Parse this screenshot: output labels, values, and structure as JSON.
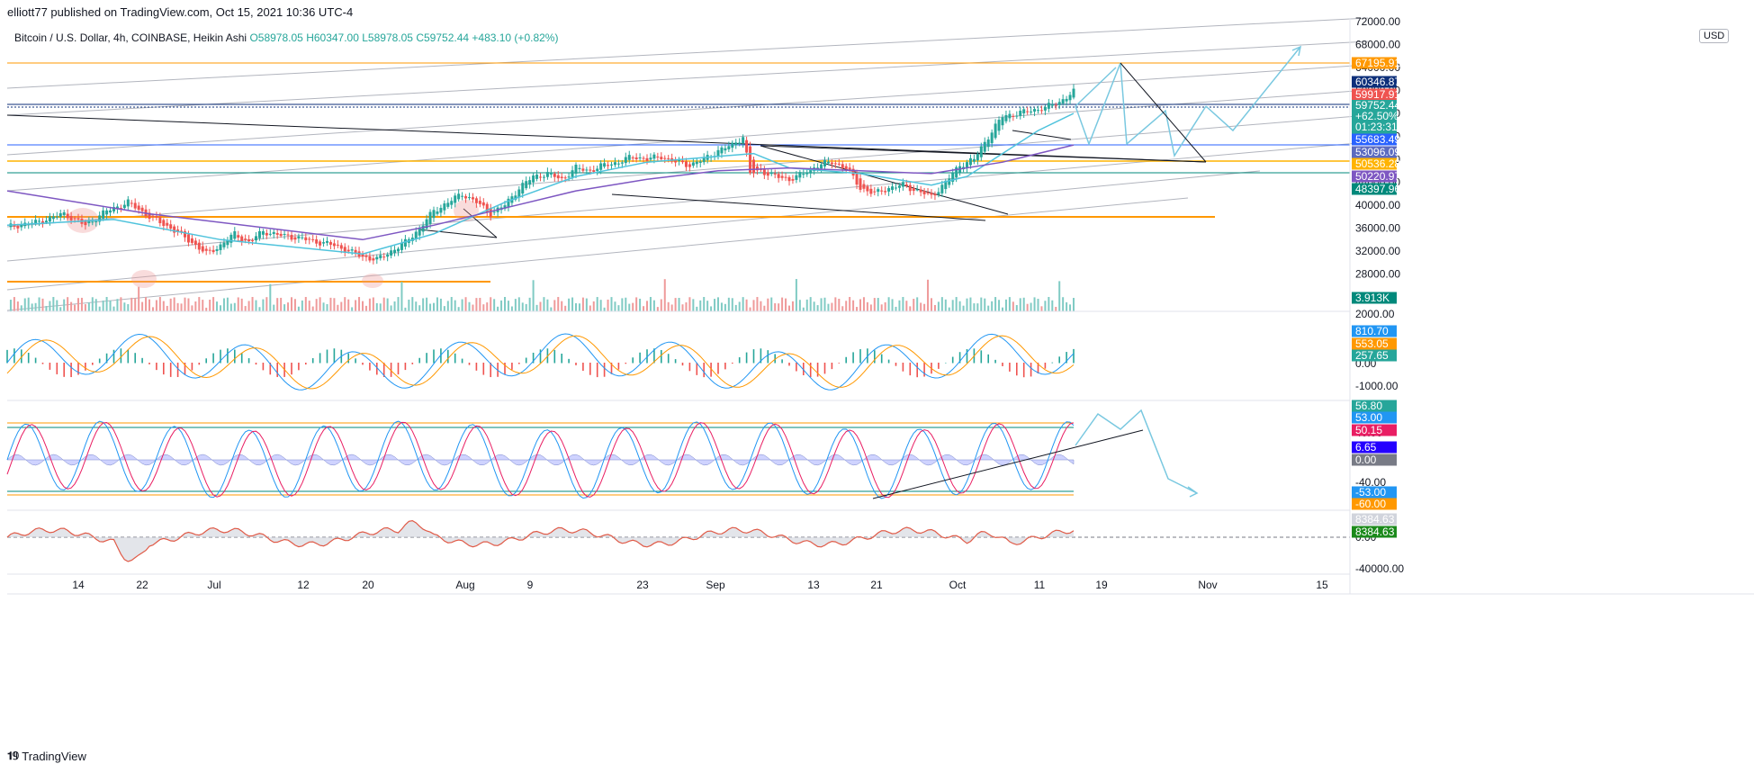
{
  "header": {
    "published": "elliott77 published on TradingView.com, Oct 15, 2021 10:36 UTC-4"
  },
  "legend": {
    "symbol": "Bitcoin / U.S. Dollar, 4h, COINBASE, Heikin Ashi",
    "o": "O58978.05",
    "h": "H60347.00",
    "l": "L58978.05",
    "c": "C59752.44",
    "change": "+483.10 (+0.82%)"
  },
  "currency": "USD",
  "footer": {
    "brand": "TradingView",
    "logo": "tradingview-logo-icon"
  },
  "colors": {
    "up": "#26a69a",
    "down": "#ef5350",
    "orange": "#ff9800",
    "navy": "#0d2f7a",
    "purple": "#7e57c2",
    "ma": "#4fc3dc",
    "teal": "#00897b",
    "forecast": "#79c8e0"
  },
  "chart_data": [
    {
      "type": "candlestick",
      "name": "main",
      "title": "Bitcoin / U.S. Dollar, 4h, COINBASE, Heikin Ashi",
      "x_ticks": [
        "14",
        "22",
        "Jul",
        "12",
        "20",
        "Aug",
        "9",
        "23",
        "Sep",
        "13",
        "21",
        "Oct",
        "11",
        "19",
        "Nov",
        "15"
      ],
      "y_ticks": [
        "72000.00",
        "68000.00",
        "64000.00",
        "60000.00",
        "56000.00",
        "52000.00",
        "48000.00",
        "44000.00",
        "40000.00",
        "36000.00",
        "32000.00",
        "28000.00"
      ],
      "ylim": [
        27000,
        74000
      ],
      "price_path": [
        [
          0,
          36200
        ],
        [
          8,
          37000
        ],
        [
          16,
          38500
        ],
        [
          22,
          36500
        ],
        [
          28,
          39000
        ],
        [
          34,
          40500
        ],
        [
          40,
          38000
        ],
        [
          46,
          36000
        ],
        [
          52,
          33500
        ],
        [
          56,
          31500
        ],
        [
          60,
          33000
        ],
        [
          64,
          35000
        ],
        [
          68,
          33500
        ],
        [
          72,
          35500
        ],
        [
          76,
          34800
        ],
        [
          80,
          34500
        ],
        [
          84,
          34000
        ],
        [
          88,
          33500
        ],
        [
          92,
          33000
        ],
        [
          96,
          32000
        ],
        [
          100,
          31000
        ],
        [
          104,
          30500
        ],
        [
          108,
          32000
        ],
        [
          112,
          33500
        ],
        [
          116,
          36000
        ],
        [
          120,
          39000
        ],
        [
          124,
          40500
        ],
        [
          128,
          42000
        ],
        [
          132,
          40500
        ],
        [
          136,
          38500
        ],
        [
          140,
          40000
        ],
        [
          144,
          43000
        ],
        [
          148,
          45000
        ],
        [
          152,
          45500
        ],
        [
          156,
          44500
        ],
        [
          160,
          46500
        ],
        [
          164,
          46000
        ],
        [
          168,
          47000
        ],
        [
          172,
          47500
        ],
        [
          176,
          48500
        ],
        [
          180,
          48000
        ],
        [
          184,
          48500
        ],
        [
          188,
          47500
        ],
        [
          192,
          47000
        ],
        [
          196,
          48000
        ],
        [
          200,
          49500
        ],
        [
          204,
          50500
        ],
        [
          207,
          52000
        ],
        [
          209,
          45500
        ],
        [
          212,
          46000
        ],
        [
          216,
          45000
        ],
        [
          220,
          44500
        ],
        [
          224,
          45500
        ],
        [
          228,
          47000
        ],
        [
          232,
          47500
        ],
        [
          236,
          46500
        ],
        [
          240,
          43000
        ],
        [
          244,
          42000
        ],
        [
          248,
          43000
        ],
        [
          252,
          43500
        ],
        [
          256,
          42500
        ],
        [
          260,
          41500
        ],
        [
          264,
          44000
        ],
        [
          268,
          47000
        ],
        [
          272,
          48000
        ],
        [
          276,
          52000
        ],
        [
          280,
          55500
        ],
        [
          284,
          56000
        ],
        [
          288,
          56500
        ],
        [
          292,
          57000
        ],
        [
          296,
          58000
        ],
        [
          300,
          59750
        ]
      ],
      "lines": {
        "ma_cyan": [
          [
            0,
            36500
          ],
          [
            30,
            37500
          ],
          [
            60,
            34000
          ],
          [
            100,
            31500
          ],
          [
            120,
            35000
          ],
          [
            140,
            40500
          ],
          [
            160,
            45000
          ],
          [
            180,
            47500
          ],
          [
            200,
            48500
          ],
          [
            210,
            49000
          ],
          [
            220,
            46500
          ],
          [
            240,
            45500
          ],
          [
            260,
            43500
          ],
          [
            270,
            45000
          ],
          [
            280,
            49000
          ],
          [
            290,
            53000
          ],
          [
            300,
            56000
          ]
        ],
        "ma_purple": [
          [
            0,
            42500
          ],
          [
            40,
            38500
          ],
          [
            80,
            35500
          ],
          [
            100,
            34000
          ],
          [
            120,
            36500
          ],
          [
            140,
            39500
          ],
          [
            160,
            42500
          ],
          [
            180,
            44500
          ],
          [
            200,
            46000
          ],
          [
            220,
            46500
          ],
          [
            240,
            46000
          ],
          [
            260,
            45500
          ],
          [
            280,
            47500
          ],
          [
            300,
            50500
          ]
        ]
      },
      "price_labels": [
        {
          "label": "67195.91",
          "color": "#ff9800"
        },
        {
          "label": "60346.87",
          "color": "#0d2f7a"
        },
        {
          "label": "59917.91",
          "color": "#ef5350"
        },
        {
          "label": "59752.44",
          "sub": [
            "+62.50%",
            "01:23:31"
          ],
          "color": "#26a69a"
        },
        {
          "label": "55683.49",
          "color": "#2962ff"
        },
        {
          "label": "53096.09",
          "color": "#5c6bc0"
        },
        {
          "label": "50536.28",
          "color": "#ffb300",
          "text_color": "#131722"
        },
        {
          "label": "50220.97",
          "color": "#7e57c2"
        },
        {
          "label": "48397.96",
          "color": "#00897b"
        }
      ],
      "volume_label": "3.913K"
    },
    {
      "type": "line",
      "name": "oscillator-1",
      "y_ticks": [
        "2000.00",
        "0.00",
        "-1000.00"
      ],
      "ylim": [
        -1400,
        2000
      ],
      "series": [
        {
          "values_label": "810.70",
          "color": "#2196f3"
        },
        {
          "values_label": "553.05",
          "color": "#ff9800"
        },
        {
          "values_label": "257.65",
          "color": "#26a69a"
        }
      ]
    },
    {
      "type": "line",
      "name": "oscillator-2",
      "y_ticks": [
        "40.00",
        "-40.00"
      ],
      "ylim": [
        -70,
        70
      ],
      "levels": [
        {
          "label": "56.80",
          "color": "#26a69a"
        },
        {
          "label": "53.00",
          "color": "#2196f3"
        },
        {
          "label": "50.15",
          "color": "#e91e63"
        },
        {
          "label": "6.65",
          "color": "#2400ff"
        },
        {
          "label": "0.00",
          "color": "#787b86"
        },
        {
          "label": "-53.00",
          "color": "#2196f3"
        },
        {
          "label": "-60.00",
          "color": "#ff9800"
        }
      ]
    },
    {
      "type": "area",
      "name": "oscillator-3",
      "y_ticks": [
        "0.00",
        "-40000.00"
      ],
      "ylim": [
        -48000,
        30000
      ],
      "labels": [
        {
          "label": "8384.63",
          "color": "#d1d4dc",
          "text_color": "#131722"
        },
        {
          "label": "8384.63",
          "color": "#1b8a1b"
        }
      ]
    }
  ]
}
